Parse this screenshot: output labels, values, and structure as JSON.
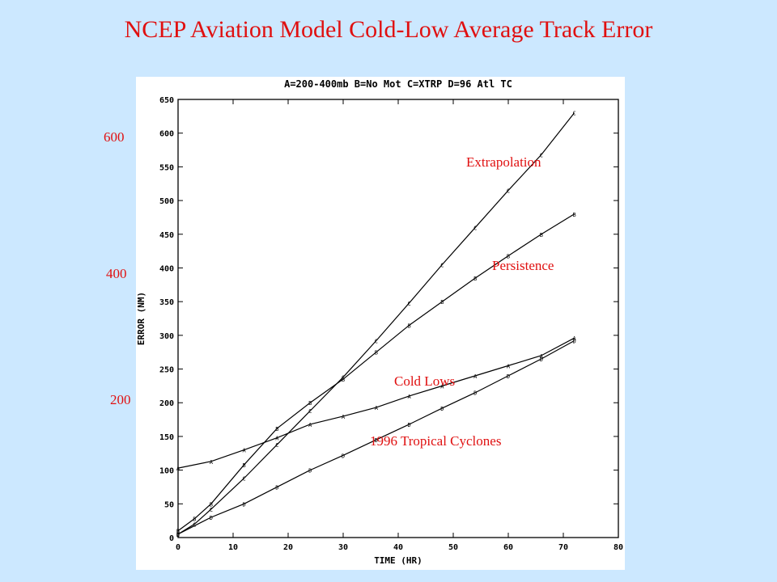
{
  "slide": {
    "title": "NCEP Aviation Model Cold-Low Average Track Error",
    "side_ticks": [
      "600",
      "400",
      "200"
    ]
  },
  "chart_data": {
    "type": "line",
    "title": "A=200-400mb B=No Mot C=XTRP D=96 Atl TC",
    "xlabel": "TIME (HR)",
    "ylabel": "ERROR (NM)",
    "xlim": [
      0,
      80
    ],
    "ylim": [
      0,
      650
    ],
    "xticks": [
      0,
      10,
      20,
      30,
      40,
      50,
      60,
      70,
      80
    ],
    "yticks": [
      0,
      50,
      100,
      150,
      200,
      250,
      300,
      350,
      400,
      450,
      500,
      550,
      600,
      650
    ],
    "grid": false,
    "series": [
      {
        "name": "Extrapolation",
        "marker": "C",
        "x": [
          0,
          3,
          6,
          12,
          18,
          24,
          30,
          36,
          42,
          48,
          54,
          60,
          66,
          72
        ],
        "y": [
          5,
          20,
          42,
          88,
          138,
          188,
          238,
          292,
          348,
          405,
          460,
          515,
          568,
          630
        ]
      },
      {
        "name": "Persistence",
        "marker": "B",
        "x": [
          0,
          3,
          6,
          12,
          18,
          24,
          30,
          36,
          42,
          48,
          54,
          60,
          66,
          72
        ],
        "y": [
          10,
          28,
          50,
          108,
          162,
          200,
          235,
          275,
          315,
          350,
          385,
          418,
          450,
          480
        ]
      },
      {
        "name": "Cold Lows",
        "marker": "A",
        "x": [
          0,
          6,
          12,
          18,
          24,
          30,
          36,
          42,
          48,
          54,
          60,
          66,
          72
        ],
        "y": [
          103,
          113,
          130,
          148,
          168,
          180,
          193,
          210,
          225,
          240,
          255,
          270,
          296
        ]
      },
      {
        "name": "1996 Tropical Cyclones",
        "marker": "D",
        "x": [
          0,
          6,
          12,
          18,
          24,
          30,
          36,
          42,
          48,
          54,
          60,
          66,
          72
        ],
        "y": [
          5,
          30,
          50,
          75,
          100,
          122,
          145,
          168,
          192,
          215,
          240,
          265,
          292
        ]
      }
    ]
  }
}
